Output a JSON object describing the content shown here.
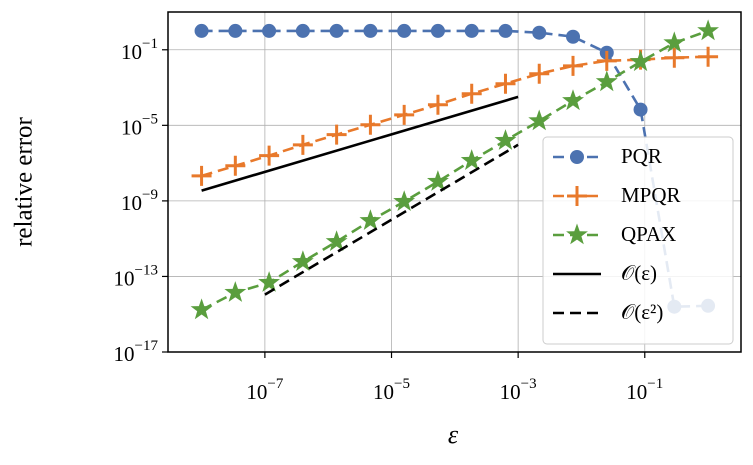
{
  "chart_data": {
    "type": "line",
    "xlabel": "ε",
    "ylabel": "relative error",
    "xscale": "log",
    "yscale": "log",
    "grid": true,
    "legend_loc": "lower right",
    "xlim": [
      2.95e-09,
      3.31
    ],
    "ylim": [
      1e-17,
      10
    ],
    "xticks": [
      {
        "value": 1e-07,
        "label": "10−7"
      },
      {
        "value": 1e-05,
        "label": "10−5"
      },
      {
        "value": 0.001,
        "label": "10−3"
      },
      {
        "value": 0.1,
        "label": "10−1"
      }
    ],
    "yticks": [
      {
        "value": 1e-17,
        "label": "10−17"
      },
      {
        "value": 1e-13,
        "label": "10−13"
      },
      {
        "value": 1e-09,
        "label": "10−9"
      },
      {
        "value": 1e-05,
        "label": "10−5"
      },
      {
        "value": 0.1,
        "label": "10−1"
      }
    ],
    "x": [
      1e-08,
      3.415e-08,
      1.166e-07,
      3.981e-07,
      1.359e-06,
      4.642e-06,
      1.585e-05,
      5.412e-05,
      0.0001848,
      0.000631,
      0.002154,
      0.007356,
      0.02512,
      0.08577,
      0.2929,
      1
    ],
    "series": [
      {
        "name": "PQR",
        "color": "#4c72b0",
        "linestyle": "dashed",
        "marker": "circle",
        "values": [
          1,
          1,
          1,
          1,
          1,
          1,
          1,
          1,
          1,
          1,
          0.8,
          0.49,
          0.07,
          6.8e-05,
          2.5e-15,
          2.8e-15
        ]
      },
      {
        "name": "MPQR",
        "color": "#e8792b",
        "linestyle": "dashed",
        "marker": "plus",
        "values": [
          2.1e-08,
          7.2e-08,
          2.5e-07,
          9.3e-07,
          3.2e-06,
          1.07e-05,
          3.6e-05,
          0.000123,
          0.00047,
          0.0016,
          0.0054,
          0.014,
          0.026,
          0.03,
          0.038,
          0.043
        ]
      },
      {
        "name": "QPAX",
        "color": "#5a9e3e",
        "linestyle": "dashed",
        "marker": "star",
        "values": [
          1.7e-15,
          1.4e-14,
          4.7e-14,
          6e-13,
          6.9e-12,
          8.9e-11,
          9.1e-10,
          1.05e-08,
          1.35e-07,
          1.55e-06,
          1.7e-05,
          0.0002,
          0.002,
          0.023,
          0.23,
          1
        ]
      },
      {
        "name": "𝒪(ε)",
        "color": "#000000",
        "linestyle": "solid",
        "marker": "none",
        "x": [
          1e-08,
          0.001
        ],
        "values": [
          3.5e-09,
          0.00032
        ]
      },
      {
        "name": "𝒪(ε²)",
        "color": "#000000",
        "linestyle": "dashed",
        "marker": "none",
        "x": [
          1e-07,
          0.001
        ],
        "values": [
          1.1e-14,
          9.3e-07
        ]
      }
    ]
  }
}
